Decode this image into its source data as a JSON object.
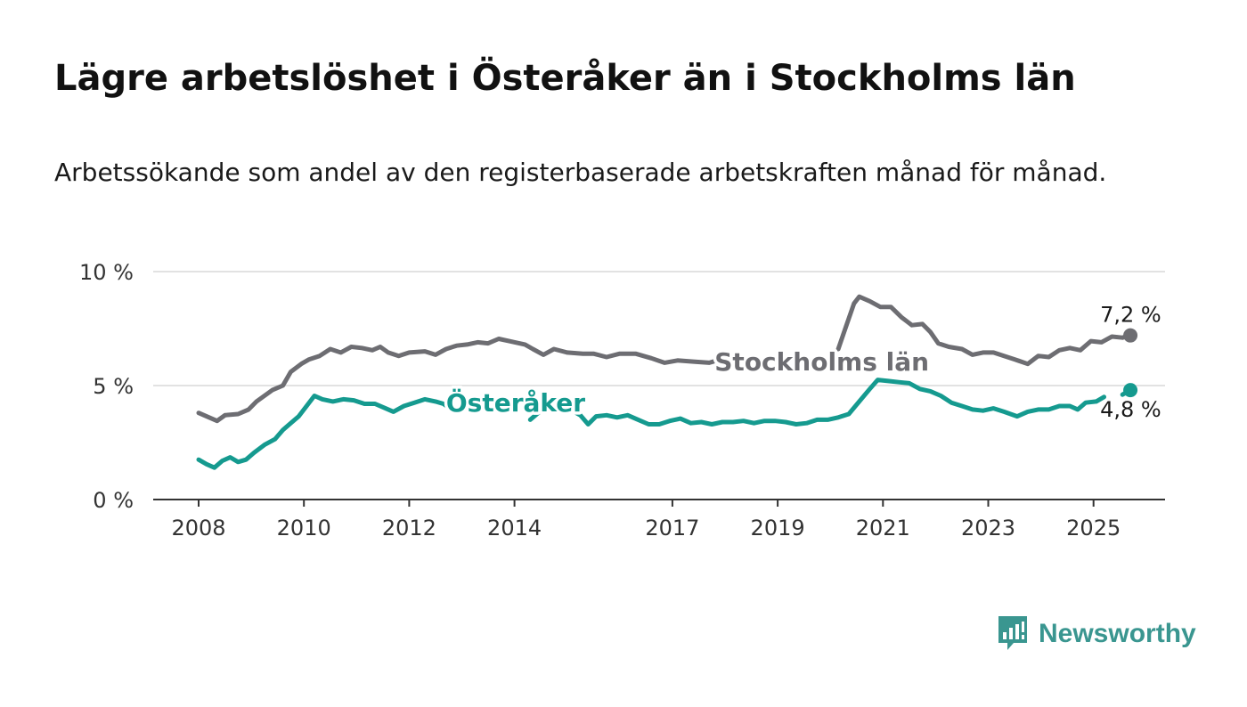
{
  "header": {
    "title": "Lägre arbetslöshet i Österåker än i Stockholms län",
    "subtitle": "Arbetssökande som andel av den registerbaserade arbetskraften månad för månad."
  },
  "brand": {
    "name": "Newsworthy",
    "icon": "bar-chart-speech-bubble-icon",
    "color": "#3a9690"
  },
  "chart_data": {
    "type": "line",
    "title": "Lägre arbetslöshet i Österåker än i Stockholms län",
    "subtitle": "Arbetssökande som andel av den registerbaserade arbetskraften månad för månad.",
    "xlabel": "",
    "ylabel": "",
    "ylim": [
      0,
      10
    ],
    "y_ticks": [
      0,
      5,
      10
    ],
    "y_tick_labels": [
      "0 %",
      "5 %",
      "10 %"
    ],
    "x_ticks": [
      2008,
      2010,
      2012,
      2014,
      2017,
      2019,
      2021,
      2023,
      2025
    ],
    "x_tick_labels": [
      "2008",
      "2010",
      "2012",
      "2014",
      "2017",
      "2019",
      "2021",
      "2023",
      "2025"
    ],
    "grid": true,
    "legend": "direct labels on lines",
    "series": [
      {
        "name": "Stockholms län",
        "color": "#6d6d72",
        "end_label": "7,2 %",
        "points": [
          [
            2008.0,
            3.8
          ],
          [
            2008.15,
            3.65
          ],
          [
            2008.35,
            3.45
          ],
          [
            2008.5,
            3.7
          ],
          [
            2008.75,
            3.75
          ],
          [
            2008.95,
            3.95
          ],
          [
            2009.1,
            4.3
          ],
          [
            2009.4,
            4.8
          ],
          [
            2009.6,
            5.0
          ],
          [
            2009.75,
            5.6
          ],
          [
            2009.95,
            5.95
          ],
          [
            2010.1,
            6.15
          ],
          [
            2010.3,
            6.3
          ],
          [
            2010.5,
            6.6
          ],
          [
            2010.7,
            6.45
          ],
          [
            2010.9,
            6.7
          ],
          [
            2011.1,
            6.65
          ],
          [
            2011.3,
            6.55
          ],
          [
            2011.45,
            6.7
          ],
          [
            2011.6,
            6.45
          ],
          [
            2011.8,
            6.3
          ],
          [
            2012.0,
            6.45
          ],
          [
            2012.3,
            6.5
          ],
          [
            2012.5,
            6.35
          ],
          [
            2012.7,
            6.6
          ],
          [
            2012.9,
            6.75
          ],
          [
            2013.1,
            6.8
          ],
          [
            2013.3,
            6.9
          ],
          [
            2013.5,
            6.85
          ],
          [
            2013.7,
            7.05
          ],
          [
            2013.9,
            6.95
          ],
          [
            2014.2,
            6.8
          ],
          [
            2014.35,
            6.6
          ],
          [
            2014.55,
            6.35
          ],
          [
            2014.75,
            6.6
          ],
          [
            2015.0,
            6.45
          ],
          [
            2015.3,
            6.4
          ],
          [
            2015.5,
            6.4
          ],
          [
            2015.75,
            6.25
          ],
          [
            2016.0,
            6.4
          ],
          [
            2016.3,
            6.4
          ],
          [
            2016.6,
            6.2
          ],
          [
            2016.85,
            6.0
          ],
          [
            2017.1,
            6.1
          ],
          [
            2017.4,
            6.05
          ],
          [
            2017.7,
            6.0
          ],
          [
            2017.85,
            6.1
          ]
        ],
        "points_segment_2": [
          [
            2020.15,
            6.6
          ],
          [
            2020.3,
            7.6
          ],
          [
            2020.45,
            8.6
          ],
          [
            2020.55,
            8.9
          ],
          [
            2020.75,
            8.7
          ],
          [
            2020.95,
            8.45
          ],
          [
            2021.15,
            8.45
          ],
          [
            2021.35,
            8.0
          ],
          [
            2021.55,
            7.65
          ],
          [
            2021.75,
            7.7
          ],
          [
            2021.9,
            7.35
          ],
          [
            2022.05,
            6.85
          ],
          [
            2022.25,
            6.7
          ],
          [
            2022.5,
            6.6
          ],
          [
            2022.7,
            6.35
          ],
          [
            2022.9,
            6.45
          ],
          [
            2023.1,
            6.45
          ],
          [
            2023.3,
            6.3
          ],
          [
            2023.5,
            6.15
          ],
          [
            2023.75,
            5.95
          ],
          [
            2023.95,
            6.3
          ],
          [
            2024.15,
            6.25
          ],
          [
            2024.35,
            6.55
          ],
          [
            2024.55,
            6.65
          ],
          [
            2024.75,
            6.55
          ],
          [
            2024.95,
            6.95
          ],
          [
            2025.15,
            6.9
          ],
          [
            2025.35,
            7.15
          ],
          [
            2025.55,
            7.1
          ],
          [
            2025.7,
            7.2
          ]
        ]
      },
      {
        "name": "Österåker",
        "color": "#159a8f",
        "end_label": "4,8 %",
        "points": [
          [
            2008.0,
            1.75
          ],
          [
            2008.15,
            1.55
          ],
          [
            2008.3,
            1.4
          ],
          [
            2008.45,
            1.7
          ],
          [
            2008.6,
            1.85
          ],
          [
            2008.75,
            1.65
          ],
          [
            2008.9,
            1.75
          ],
          [
            2009.05,
            2.05
          ],
          [
            2009.25,
            2.4
          ],
          [
            2009.45,
            2.65
          ],
          [
            2009.6,
            3.05
          ],
          [
            2009.75,
            3.35
          ],
          [
            2009.9,
            3.65
          ],
          [
            2010.05,
            4.1
          ],
          [
            2010.2,
            4.55
          ],
          [
            2010.35,
            4.4
          ],
          [
            2010.55,
            4.3
          ],
          [
            2010.75,
            4.4
          ],
          [
            2010.95,
            4.35
          ],
          [
            2011.15,
            4.2
          ],
          [
            2011.35,
            4.2
          ],
          [
            2011.55,
            4.0
          ],
          [
            2011.7,
            3.85
          ],
          [
            2011.9,
            4.1
          ],
          [
            2012.1,
            4.25
          ],
          [
            2012.3,
            4.4
          ],
          [
            2012.5,
            4.3
          ],
          [
            2012.65,
            4.2
          ],
          [
            2012.8,
            3.95
          ]
        ],
        "points_segment_2": [
          [
            2014.3,
            3.5
          ],
          [
            2014.5,
            3.9
          ]
        ],
        "points_segment_3": [
          [
            2015.1,
            3.9
          ],
          [
            2015.25,
            3.7
          ],
          [
            2015.4,
            3.3
          ],
          [
            2015.55,
            3.65
          ],
          [
            2015.75,
            3.7
          ],
          [
            2015.95,
            3.6
          ],
          [
            2016.15,
            3.7
          ],
          [
            2016.35,
            3.5
          ],
          [
            2016.55,
            3.3
          ],
          [
            2016.75,
            3.3
          ],
          [
            2016.95,
            3.45
          ],
          [
            2017.15,
            3.55
          ],
          [
            2017.35,
            3.35
          ],
          [
            2017.55,
            3.4
          ],
          [
            2017.75,
            3.3
          ],
          [
            2017.95,
            3.4
          ],
          [
            2018.15,
            3.4
          ],
          [
            2018.35,
            3.45
          ],
          [
            2018.55,
            3.35
          ],
          [
            2018.75,
            3.45
          ],
          [
            2018.95,
            3.45
          ],
          [
            2019.15,
            3.4
          ],
          [
            2019.35,
            3.3
          ],
          [
            2019.55,
            3.35
          ],
          [
            2019.75,
            3.5
          ],
          [
            2019.95,
            3.5
          ],
          [
            2020.15,
            3.6
          ],
          [
            2020.35,
            3.75
          ],
          [
            2020.55,
            4.3
          ],
          [
            2020.75,
            4.85
          ],
          [
            2020.9,
            5.25
          ],
          [
            2021.1,
            5.2
          ],
          [
            2021.3,
            5.15
          ],
          [
            2021.5,
            5.1
          ],
          [
            2021.7,
            4.85
          ],
          [
            2021.9,
            4.75
          ],
          [
            2022.1,
            4.55
          ],
          [
            2022.3,
            4.25
          ],
          [
            2022.5,
            4.1
          ],
          [
            2022.7,
            3.95
          ],
          [
            2022.9,
            3.9
          ],
          [
            2023.1,
            4.0
          ],
          [
            2023.3,
            3.85
          ],
          [
            2023.55,
            3.65
          ],
          [
            2023.75,
            3.85
          ],
          [
            2023.95,
            3.95
          ],
          [
            2024.15,
            3.95
          ],
          [
            2024.35,
            4.1
          ],
          [
            2024.55,
            4.1
          ],
          [
            2024.7,
            3.95
          ],
          [
            2024.85,
            4.25
          ],
          [
            2025.05,
            4.3
          ],
          [
            2025.2,
            4.5
          ]
        ],
        "points_segment_4": [
          [
            2025.55,
            4.6
          ],
          [
            2025.7,
            4.8
          ]
        ]
      }
    ],
    "line_labels": [
      {
        "series": "Stockholms län",
        "text": "Stockholms län",
        "x": 2017.7,
        "y": 6.1
      },
      {
        "series": "Österåker",
        "text": "Österåker",
        "x": 2012.6,
        "y": 4.3
      }
    ]
  }
}
